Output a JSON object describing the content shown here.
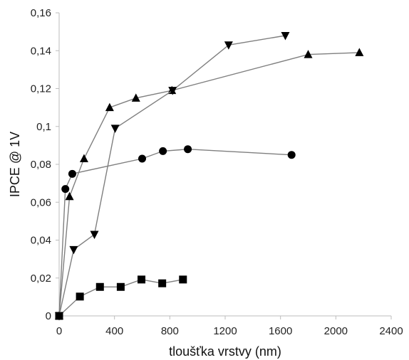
{
  "chart_data": {
    "type": "scatter",
    "title": "",
    "xlabel": "tloušťka vrstvy (nm)",
    "ylabel": "IPCE @ 1V",
    "xlim": [
      0,
      2400
    ],
    "ylim": [
      0,
      0.16
    ],
    "x_ticks": [
      0,
      400,
      800,
      1200,
      1600,
      2000,
      2400
    ],
    "x_tick_labels": [
      "0",
      "400",
      "800",
      "1200",
      "1600",
      "2000",
      "2400"
    ],
    "y_ticks": [
      0,
      0.02,
      0.04,
      0.06,
      0.08,
      0.1,
      0.12,
      0.14,
      0.16
    ],
    "y_tick_labels": [
      "0",
      "0,02",
      "0,04",
      "0,06",
      "0,08",
      "0,1",
      "0,12",
      "0,14",
      "0,16"
    ],
    "grid": false,
    "legend": "none",
    "line_color": "#7f7f7f",
    "marker_color": "#000000",
    "series": [
      {
        "marker": "square",
        "x": [
          0,
          150,
          295,
          445,
          595,
          745,
          895
        ],
        "y": [
          0,
          0.0102,
          0.0153,
          0.0153,
          0.0192,
          0.0172,
          0.0192
        ]
      },
      {
        "marker": "circle",
        "x": [
          0,
          45,
          95,
          600,
          750,
          930,
          1680
        ],
        "y": [
          0,
          0.067,
          0.075,
          0.083,
          0.087,
          0.088,
          0.085
        ]
      },
      {
        "marker": "triangle-up",
        "x": [
          0,
          75,
          180,
          365,
          555,
          815,
          1800,
          2170
        ],
        "y": [
          0,
          0.063,
          0.083,
          0.11,
          0.115,
          0.119,
          0.138,
          0.139
        ]
      },
      {
        "marker": "triangle-down",
        "x": [
          0,
          105,
          255,
          405,
          820,
          1225,
          1635
        ],
        "y": [
          0,
          0.035,
          0.043,
          0.099,
          0.119,
          0.143,
          0.148
        ]
      }
    ]
  }
}
